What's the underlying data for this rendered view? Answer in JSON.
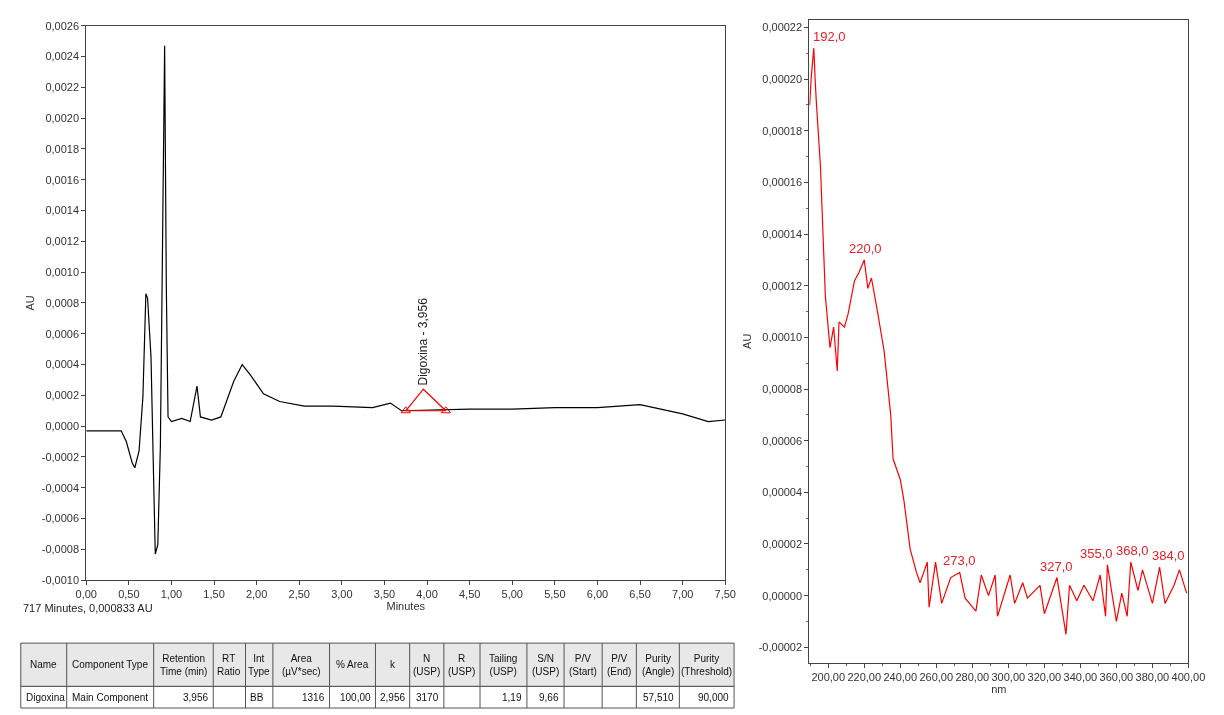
{
  "chart_data": [
    {
      "type": "line",
      "xlabel": "Minutes",
      "ylabel": "AU",
      "grid": false,
      "xlim": [
        0,
        7.5
      ],
      "xticks": [
        {
          "value": 0,
          "label": "0,00"
        },
        {
          "value": 0.5,
          "label": "0,50"
        },
        {
          "value": 1,
          "label": "1,00"
        },
        {
          "value": 1.5,
          "label": "1,50"
        },
        {
          "value": 2,
          "label": "2,00"
        },
        {
          "value": 2.5,
          "label": "2,50"
        },
        {
          "value": 3,
          "label": "3,00"
        },
        {
          "value": 3.5,
          "label": "3,50"
        },
        {
          "value": 4,
          "label": "4,00"
        },
        {
          "value": 4.5,
          "label": "4,50"
        },
        {
          "value": 5,
          "label": "5,00"
        },
        {
          "value": 5.5,
          "label": "5,50"
        },
        {
          "value": 6,
          "label": "6,00"
        },
        {
          "value": 6.5,
          "label": "6,50"
        },
        {
          "value": 7,
          "label": "7,00"
        },
        {
          "value": 7.5,
          "label": "7,50"
        }
      ],
      "ylim": [
        -0.001,
        0.0026
      ],
      "yticks": [
        {
          "value": -0.001,
          "label": "-0,0010"
        },
        {
          "value": -0.0008,
          "label": "-0,0008"
        },
        {
          "value": -0.0006,
          "label": "-0,0006"
        },
        {
          "value": -0.0004,
          "label": "-0,0004"
        },
        {
          "value": -0.0002,
          "label": "-0,0002"
        },
        {
          "value": 0,
          "label": "0,0000"
        },
        {
          "value": 0.0002,
          "label": "0,0002"
        },
        {
          "value": 0.0004,
          "label": "0,0004"
        },
        {
          "value": 0.0006,
          "label": "0,0006"
        },
        {
          "value": 0.0008,
          "label": "0,0008"
        },
        {
          "value": 0.001,
          "label": "0,0010"
        },
        {
          "value": 0.0012,
          "label": "0,0012"
        },
        {
          "value": 0.0014,
          "label": "0,0014"
        },
        {
          "value": 0.0016,
          "label": "0,0016"
        },
        {
          "value": 0.0018,
          "label": "0,0018"
        },
        {
          "value": 0.002,
          "label": "0,0020"
        },
        {
          "value": 0.0022,
          "label": "0,0022"
        },
        {
          "value": 0.0024,
          "label": "0,0024"
        },
        {
          "value": 0.0026,
          "label": "0,0026"
        }
      ],
      "series": [
        {
          "color": "#000000",
          "marker": "none",
          "x": [
            0,
            0.41,
            0.47,
            0.54,
            0.57,
            0.62,
            0.665,
            0.7,
            0.72,
            0.76,
            0.79,
            0.81,
            0.84,
            0.87,
            0.89,
            0.92,
            0.94,
            0.96,
            1.0,
            1.12,
            1.22,
            1.3,
            1.34,
            1.47,
            1.58,
            1.73,
            1.83,
            1.93,
            2.08,
            2.27,
            2.56,
            2.9,
            3.36,
            3.57,
            3.7,
            4.5,
            5.0,
            5.5,
            6.0,
            6.5,
            7.0,
            7.3,
            7.5
          ],
          "values": [
            -3e-05,
            -3e-05,
            -0.0001,
            -0.00024,
            -0.00027,
            -0.00016,
            0.00019,
            0.00086,
            0.00083,
            0.00045,
            -0.00032,
            -0.00083,
            -0.00077,
            -0.00013,
            0.0009,
            0.00247,
            0.0009,
            6e-05,
            3e-05,
            5e-05,
            3e-05,
            0.00026,
            6e-05,
            4e-05,
            6e-05,
            0.00029,
            0.0004,
            0.00033,
            0.00021,
            0.00016,
            0.00013,
            0.00013,
            0.00012,
            0.00015,
            0.0001,
            0.00011,
            0.00011,
            0.00012,
            0.00012,
            0.00014,
            8e-05,
            3e-05,
            4e-05
          ]
        },
        {
          "type": "line",
          "color": "#ff0000",
          "marker": "triangle",
          "x": [
            3.75,
            4.22
          ],
          "values": [
            0.0001,
            0.0001
          ]
        },
        {
          "type": "line",
          "color": "#ff0000",
          "marker": "none",
          "x": [
            3.75,
            3.956,
            4.22
          ],
          "values": [
            0.0001,
            0.00024,
            0.0001
          ]
        }
      ],
      "annotations": [
        "717 Minutes, 0,000833 AU",
        {
          "text": "Digoxina - 3,956",
          "x": 3.956,
          "y": 0.00024
        },
        "Name",
        "Component Type",
        "Retention Time (min)",
        "RT Ratio",
        "Int Type",
        "Area (µV*sec)",
        "% Area",
        "k",
        "N (USP)",
        "R (USP)",
        "Tailing (USP)",
        "S/N (USP)",
        "P/V (Start)",
        "P/V (End)",
        "Purity (Angle)",
        "Purity (Threshold)",
        "Digoxina",
        "Main Component",
        "3,956",
        null,
        "BB",
        "1316",
        "100,00",
        "2,956",
        "3170",
        null,
        "1,19",
        "9,66",
        null,
        null,
        "57,510",
        "90,000"
      ]
    },
    {
      "type": "line",
      "xlabel": "nm",
      "ylabel": "AU",
      "grid": false,
      "xlim": [
        189.5,
        400
      ],
      "xticks": [
        {
          "value": 200,
          "label": "200,00"
        },
        {
          "value": 220,
          "label": "220,00"
        },
        {
          "value": 240,
          "label": "240,00"
        },
        {
          "value": 260,
          "label": "260,00"
        },
        {
          "value": 280,
          "label": "280,00"
        },
        {
          "value": 300,
          "label": "300,00"
        },
        {
          "value": 320,
          "label": "320,00"
        },
        {
          "value": 340,
          "label": "340,00"
        },
        {
          "value": 360,
          "label": "360,00"
        },
        {
          "value": 380,
          "label": "380,00"
        },
        {
          "value": 400,
          "label": "400,00"
        }
      ],
      "ylim": [
        -2.6e-05,
        0.000223
      ],
      "yticks": [
        {
          "value": -2e-05,
          "label": "-0,00002"
        },
        {
          "value": 0,
          "label": "0,00000"
        },
        {
          "value": 2e-05,
          "label": "0,00002"
        },
        {
          "value": 4e-05,
          "label": "0,00004"
        },
        {
          "value": 6e-05,
          "label": "0,00006"
        },
        {
          "value": 8e-05,
          "label": "0,00008"
        },
        {
          "value": 0.0001,
          "label": "0,00010"
        },
        {
          "value": 0.00012,
          "label": "0,00012"
        },
        {
          "value": 0.00014,
          "label": "0,00014"
        },
        {
          "value": 0.00016,
          "label": "0,00016"
        },
        {
          "value": 0.00018,
          "label": "0,00018"
        },
        {
          "value": 0.0002,
          "label": "0,00020"
        },
        {
          "value": 0.00022,
          "label": "0,00022"
        }
      ],
      "series": [
        {
          "color": "#ff0000",
          "marker": "none",
          "x": [
            189.7,
            190.6,
            192,
            192.8,
            193.5,
            195.7,
            198.4,
            201,
            203,
            205,
            206,
            209,
            211,
            214.6,
            217,
            220,
            222,
            224,
            227.6,
            230,
            231,
            234.7,
            236,
            240,
            242,
            245.5,
            249,
            251,
            255,
            256,
            259.6,
            263,
            268,
            273,
            276,
            282,
            285,
            289,
            292.7,
            294,
            301,
            303.5,
            308,
            310.6,
            317.6,
            320,
            327,
            332,
            334,
            338,
            342,
            347,
            351,
            354,
            355,
            360,
            363,
            366,
            368,
            372,
            374.5,
            380,
            384,
            387,
            392,
            395,
            399
          ],
          "values": [
            0.00019,
            0.000201,
            0.000212,
            0.000199,
            0.00019,
            0.000166,
            0.000116,
            9.6e-05,
            0.000104,
            8.7e-05,
            0.000106,
            0.000104,
            0.000109,
            0.000122,
            0.000125,
            0.00013,
            0.000119,
            0.000123,
            0.000109,
            9.9e-05,
            9.5e-05,
            7e-05,
            5.3e-05,
            4.5e-05,
            3.7e-05,
            1.8e-05,
            9e-06,
            5e-06,
            1.3e-05,
            -4.5e-06,
            1.3e-05,
            -3e-06,
            7e-06,
            9e-06,
            -1e-06,
            -6e-06,
            8e-06,
            0,
            8e-06,
            -8e-06,
            8e-06,
            -3e-06,
            5e-06,
            -1e-06,
            4e-06,
            -7e-06,
            7e-06,
            -1.5e-05,
            4e-06,
            -2e-06,
            4e-06,
            -2e-06,
            8e-06,
            -8e-06,
            1.2e-05,
            -1e-05,
            1e-06,
            -8e-06,
            1.3e-05,
            2e-06,
            1e-05,
            -3e-06,
            1.1e-05,
            -3e-06,
            4e-06,
            1e-05,
            1e-06
          ]
        }
      ],
      "annotations": [
        {
          "text": "192,0",
          "x": 192,
          "y": 0.000212
        },
        {
          "text": "220,0",
          "x": 220,
          "y": 0.00013
        },
        {
          "text": "273,0",
          "x": 273,
          "y": 9e-06
        },
        {
          "text": "327,0",
          "x": 327,
          "y": 7e-06
        },
        {
          "text": "355,0",
          "x": 355,
          "y": 1.2e-05
        },
        {
          "text": "368,0",
          "x": 368,
          "y": 1.3e-05
        },
        {
          "text": "384,0",
          "x": 384,
          "y": 1.1e-05
        }
      ]
    }
  ]
}
